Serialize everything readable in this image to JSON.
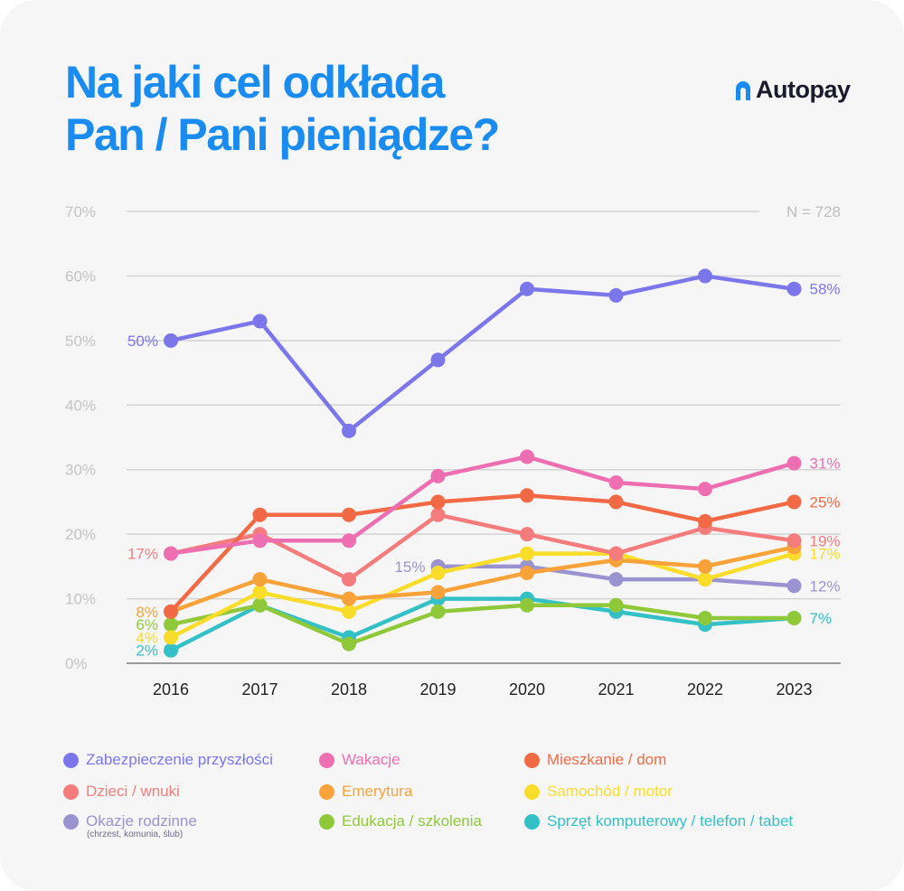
{
  "title": {
    "line1": "Na jaki cel odkłada",
    "line2": "Pan / Pani pieniądze?"
  },
  "brand": {
    "name": "Autopay",
    "icon": "autopay-logo-icon",
    "color": "#1a8cf0"
  },
  "sample_note": "N = 728",
  "legend_note": "(chrzest, komunia, ślub)",
  "chart_data": {
    "type": "line",
    "x": [
      "2016",
      "2017",
      "2018",
      "2019",
      "2020",
      "2021",
      "2022",
      "2023"
    ],
    "ylim": [
      0,
      70
    ],
    "yticks": [
      "0%",
      "10%",
      "20%",
      "30%",
      "40%",
      "50%",
      "60%",
      "70%"
    ],
    "grid": true,
    "legend_position": "bottom",
    "series": [
      {
        "name": "Zabezpieczenie przyszłości",
        "color": "#7b76ea",
        "values": [
          50,
          53,
          36,
          47,
          58,
          57,
          60,
          58
        ],
        "labels": [
          {
            "index": 0,
            "side": "left",
            "text": "50%"
          },
          {
            "index": 7,
            "side": "right",
            "text": "58%"
          }
        ]
      },
      {
        "name": "Wakacje",
        "color": "#ee6fb1",
        "values": [
          17,
          19,
          19,
          29,
          32,
          28,
          27,
          31
        ],
        "labels": [
          {
            "index": 7,
            "side": "right",
            "text": "31%"
          }
        ]
      },
      {
        "name": "Mieszkanie / dom",
        "color": "#f26a45",
        "values": [
          8,
          23,
          23,
          25,
          26,
          25,
          22,
          25
        ],
        "labels": [
          {
            "index": 7,
            "side": "right",
            "text": "25%"
          }
        ]
      },
      {
        "name": "Dzieci / wnuki",
        "color": "#f47c7c",
        "values": [
          17,
          20,
          13,
          23,
          20,
          17,
          21,
          19
        ],
        "labels": [
          {
            "index": 0,
            "side": "left",
            "text": "17%"
          },
          {
            "index": 7,
            "side": "right",
            "text": "19%"
          }
        ]
      },
      {
        "name": "Emerytura",
        "color": "#f7a33a",
        "values": [
          8,
          13,
          10,
          11,
          14,
          16,
          15,
          18
        ],
        "labels": [
          {
            "index": 0,
            "side": "left",
            "text": "8%"
          }
        ]
      },
      {
        "name": "Samochód / motor",
        "color": "#fadd2a",
        "values": [
          4,
          11,
          8,
          14,
          17,
          17,
          13,
          17
        ],
        "labels": [
          {
            "index": 0,
            "side": "left",
            "text": "4%"
          },
          {
            "index": 7,
            "side": "right",
            "text": "17%"
          }
        ]
      },
      {
        "name": "Okazje rodzinne",
        "color": "#9b93cf",
        "start": 3,
        "values": [
          null,
          null,
          null,
          15,
          15,
          13,
          13,
          12
        ],
        "labels": [
          {
            "index": 3,
            "side": "left",
            "text": "15%"
          },
          {
            "index": 7,
            "side": "right",
            "text": "12%"
          }
        ]
      },
      {
        "name": "Edukacja / szkolenia",
        "color": "#8fc93a",
        "values": [
          6,
          9,
          3,
          8,
          9,
          9,
          7,
          7
        ],
        "labels": [
          {
            "index": 0,
            "side": "left",
            "text": "6%"
          }
        ]
      },
      {
        "name": "Sprzęt komputerowy / telefon / tabet",
        "color": "#33c0c6",
        "values": [
          2,
          9,
          4,
          10,
          10,
          8,
          6,
          7
        ],
        "labels": [
          {
            "index": 0,
            "side": "left",
            "text": "2%"
          },
          {
            "index": 7,
            "side": "right",
            "text": "7%"
          }
        ]
      }
    ]
  }
}
